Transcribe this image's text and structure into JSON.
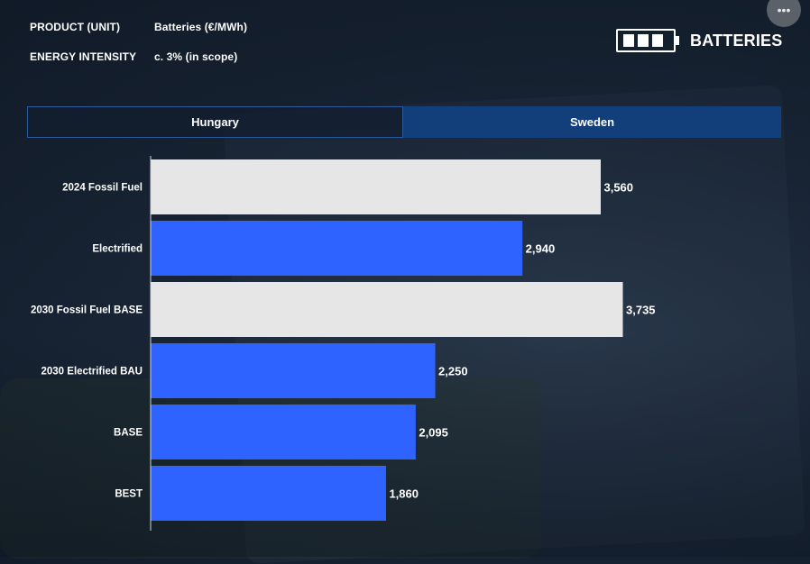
{
  "header": {
    "product_label": "PRODUCT (UNIT)",
    "product_value": "Batteries (€/MWh)",
    "energy_label": "ENERGY INTENSITY",
    "energy_value": "c. 3% (in scope)"
  },
  "brand": {
    "icon": "battery-icon",
    "title": "BATTERIES"
  },
  "more_button": {
    "icon": "more-horizontal-icon",
    "label": "•••"
  },
  "tabs": [
    {
      "label": "Hungary",
      "active": true
    },
    {
      "label": "Sweden",
      "active": false
    }
  ],
  "colors": {
    "electrified": "#2f63ff",
    "fossil": "#e6e6e6"
  },
  "chart_data": {
    "type": "bar",
    "orientation": "horizontal",
    "categories": [
      "2024 Fossil Fuel",
      "Electrified",
      "2030 Fossil Fuel BASE",
      "2030 Electrified BAU",
      "BASE",
      "BEST"
    ],
    "values": [
      3560,
      2940,
      3735,
      2250,
      2095,
      1860
    ],
    "value_labels": [
      "3,560",
      "2,940",
      "3,735",
      "2,250",
      "2,095",
      "1,860"
    ],
    "bar_colors": [
      "#e6e6e6",
      "#2f63ff",
      "#e6e6e6",
      "#2f63ff",
      "#2f63ff",
      "#2f63ff"
    ],
    "xlim": [
      0,
      4000
    ],
    "grid": false,
    "title": "",
    "xlabel": "",
    "ylabel": ""
  }
}
